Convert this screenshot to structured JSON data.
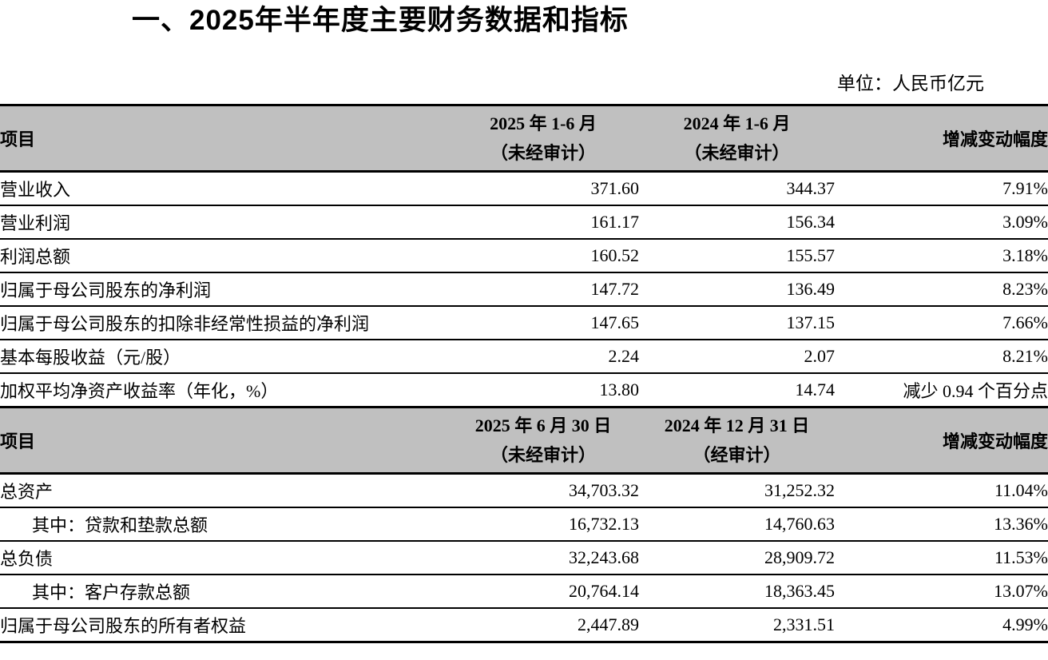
{
  "document": {
    "title": "一、2025年半年度主要财务数据和指标",
    "unit_label": "单位：人民币亿元"
  },
  "colors": {
    "header_background": "#c0c0c0",
    "border": "#000000",
    "text": "#000000"
  },
  "income_table": {
    "header": {
      "item": "项目",
      "current_period_line1": "2025 年 1-6 月",
      "current_period_line2": "（未经审计）",
      "prior_period_line1": "2024 年 1-6 月",
      "prior_period_line2": "（未经审计）",
      "change": "增减变动幅度"
    },
    "rows": [
      {
        "item": "营业收入",
        "current": "371.60",
        "prior": "344.37",
        "change": "7.91%"
      },
      {
        "item": "营业利润",
        "current": "161.17",
        "prior": "156.34",
        "change": "3.09%"
      },
      {
        "item": "利润总额",
        "current": "160.52",
        "prior": "155.57",
        "change": "3.18%"
      },
      {
        "item": "归属于母公司股东的净利润",
        "current": "147.72",
        "prior": "136.49",
        "change": "8.23%"
      },
      {
        "item": "归属于母公司股东的扣除非经常性损益的净利润",
        "current": "147.65",
        "prior": "137.15",
        "change": "7.66%"
      },
      {
        "item": "基本每股收益（元/股）",
        "current": "2.24",
        "prior": "2.07",
        "change": "8.21%"
      },
      {
        "item": "加权平均净资产收益率（年化，%）",
        "current": "13.80",
        "prior": "14.74",
        "change": "减少 0.94 个百分点"
      }
    ]
  },
  "balance_table": {
    "header": {
      "item": "项目",
      "current_period_line1": "2025 年 6 月 30 日",
      "current_period_line2": "（未经审计）",
      "prior_period_line1": "2024 年 12 月 31 日",
      "prior_period_line2": "（经审计）",
      "change": "增减变动幅度"
    },
    "rows": [
      {
        "item": "总资产",
        "current": "34,703.32",
        "prior": "31,252.32",
        "change": "11.04%"
      },
      {
        "item": "其中：贷款和垫款总额",
        "current": "16,732.13",
        "prior": "14,760.63",
        "change": "13.36%",
        "indent": true
      },
      {
        "item": "总负债",
        "current": "32,243.68",
        "prior": "28,909.72",
        "change": "11.53%"
      },
      {
        "item": "其中：客户存款总额",
        "current": "20,764.14",
        "prior": "18,363.45",
        "change": "13.07%",
        "indent": true
      },
      {
        "item": "归属于母公司股东的所有者权益",
        "current": "2,447.89",
        "prior": "2,331.51",
        "change": "4.99%"
      }
    ]
  }
}
